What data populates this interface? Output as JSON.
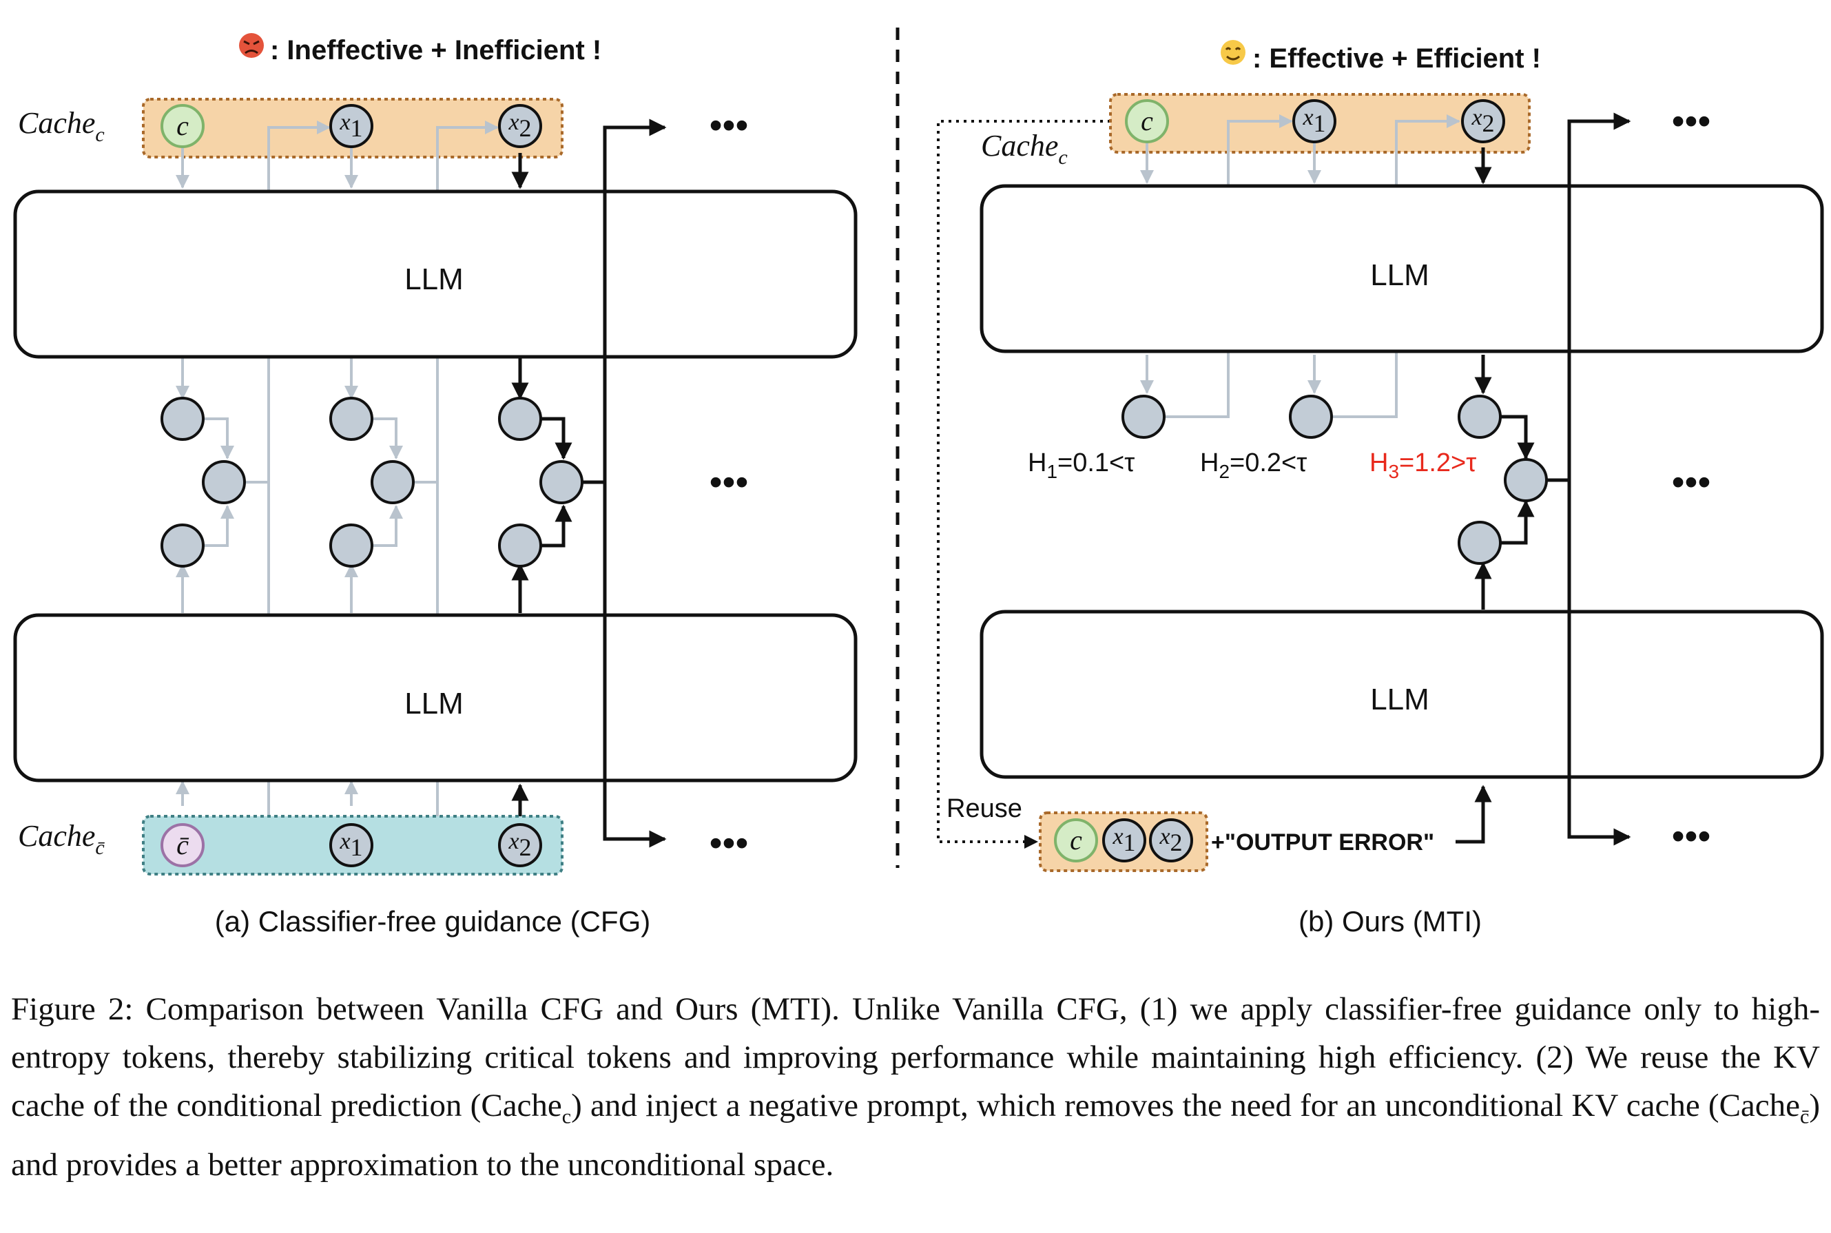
{
  "panel_a": {
    "title": ": Ineffective + Inefficient !",
    "title_emoji": "angry-face",
    "cache_cond_label": {
      "base": "Cache",
      "sub": "c"
    },
    "cache_uncond_label": {
      "base": "Cache",
      "sub": "c̄"
    },
    "cache_cond_tokens": [
      "c",
      "x",
      "x"
    ],
    "cache_cond_token_subs": [
      "",
      "1",
      "2"
    ],
    "cache_uncond_tokens": [
      "c̄",
      "x",
      "x"
    ],
    "cache_uncond_token_subs": [
      "",
      "1",
      "2"
    ],
    "llm_top": "LLM",
    "llm_bottom": "LLM",
    "ellipsis": "•••",
    "caption": "(a) Classifier-free guidance (CFG)"
  },
  "panel_b": {
    "title": ":  Effective + Efficient !",
    "title_emoji": "smiling-face",
    "cache_label": {
      "base": "Cache",
      "sub": "c"
    },
    "cache_tokens": [
      "c",
      "x",
      "x"
    ],
    "cache_token_subs": [
      "",
      "1",
      "2"
    ],
    "llm_top": "LLM",
    "llm_bottom": "LLM",
    "entropy": [
      {
        "label": "H",
        "sub": "1",
        "rest": "=0.1<τ",
        "color": "#111111"
      },
      {
        "label": "H",
        "sub": "2",
        "rest": "=0.2<τ",
        "color": "#111111"
      },
      {
        "label": "H",
        "sub": "3",
        "rest": "=1.2>τ",
        "color": "#e8291c"
      }
    ],
    "reuse_label": "Reuse",
    "reuse_tokens": [
      "c",
      "x",
      "x"
    ],
    "reuse_token_subs": [
      "",
      "1",
      "2"
    ],
    "negative_prompt": "+\"OUTPUT ERROR\"",
    "ellipsis": "•••",
    "caption": "(b) Ours (MTI)"
  },
  "colors": {
    "cache_cond_fill": "#f6d4a8",
    "cache_cond_border": "#a9692a",
    "cache_uncond_fill": "#b5dfe2",
    "cache_uncond_border": "#3f7f84",
    "token_fill": "#c2ccd6",
    "token_c_fill": "#d5ecc6",
    "token_c_border": "#7fb36a",
    "token_cbar_fill": "#ecdcef",
    "token_cbar_border": "#9c72a6",
    "gray_arrow": "#b9c3cd",
    "accent_red": "#e8291c"
  },
  "figure_caption": {
    "label": "Figure 2:",
    "line1": " Comparison between Vanilla CFG and Ours (MTI). Unlike Vanilla CFG, (1) we apply classifier-free guidance only to high-entropy tokens, thereby stabilizing critical tokens and improving performance while maintaining high efficiency. (2) We reuse the KV cache of the conditional prediction (",
    "cache_c": "Cache",
    "cache_c_sub": "c",
    "line2": ") and inject a negative prompt, which removes the need for an unconditional KV cache (",
    "cache_cbar": "Cache",
    "cache_cbar_sub": "c̄",
    "line3": ") and provides a better approximation to the unconditional space."
  }
}
